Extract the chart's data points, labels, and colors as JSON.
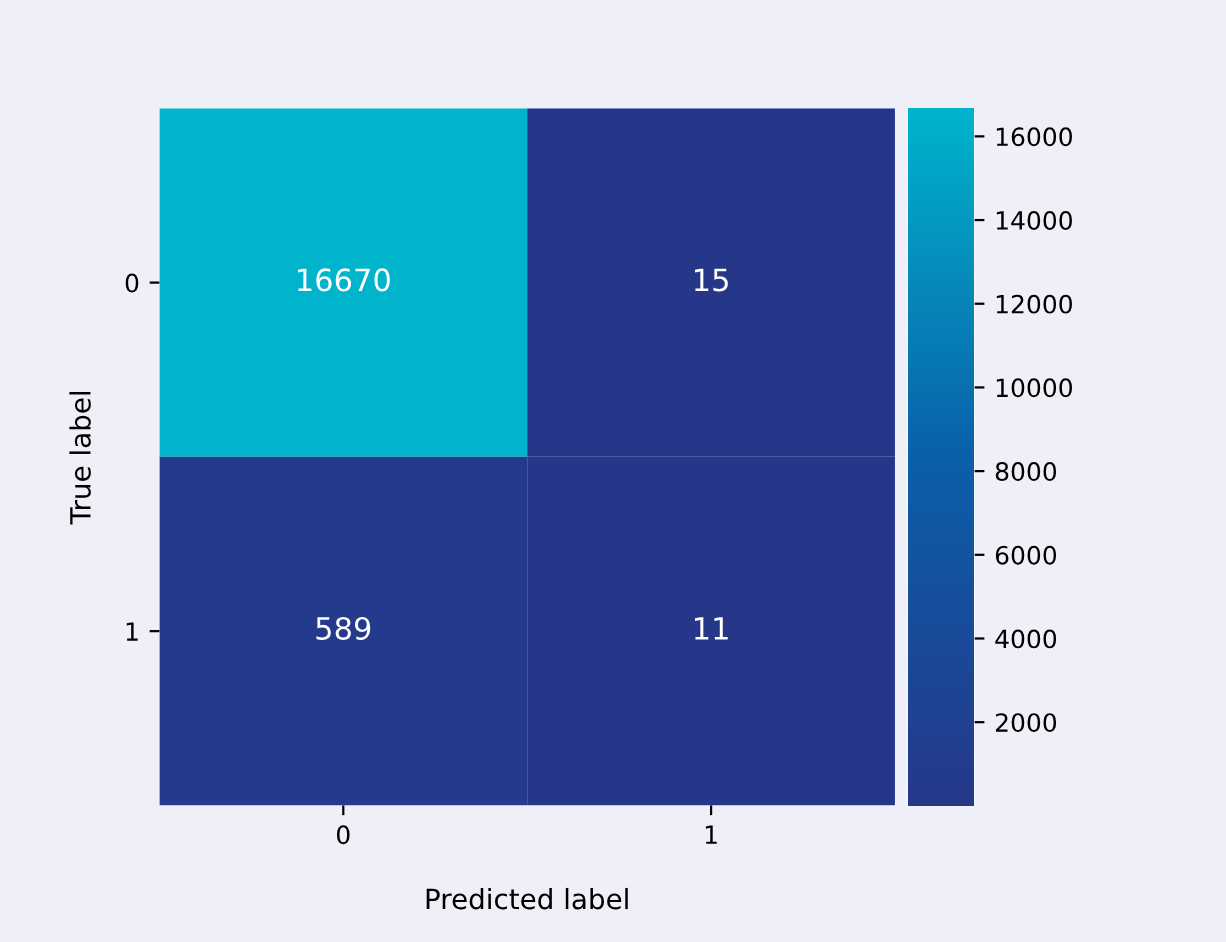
{
  "chart_data": {
    "type": "heatmap",
    "xlabel": "Predicted label",
    "ylabel": "True label",
    "categories": [
      "0",
      "1"
    ],
    "y_categories": [
      "0",
      "1"
    ],
    "cells": [
      [
        16670,
        15
      ],
      [
        589,
        11
      ]
    ],
    "data_labels": true,
    "colors": [
      "#26378a",
      "#0a5fa8",
      "#00b4cc"
    ],
    "clim": [
      11,
      16670
    ],
    "cticks": [
      2000,
      4000,
      6000,
      8000,
      10000,
      12000,
      14000,
      16000
    ]
  }
}
